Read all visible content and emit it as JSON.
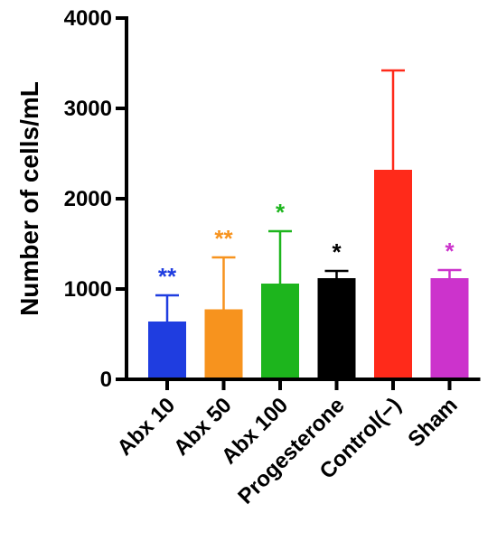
{
  "chart_data": {
    "type": "bar",
    "categories": [
      "Abx 10",
      "Abx 50",
      "Abx 100",
      "Progesterone",
      "Control(−)",
      "Sham"
    ],
    "values": [
      640,
      775,
      1060,
      1120,
      2320,
      1120
    ],
    "error_upper": [
      930,
      1350,
      1640,
      1200,
      3420,
      1210
    ],
    "significance": [
      "**",
      "**",
      "*",
      "*",
      "",
      "*"
    ],
    "colors": [
      "#1f3de0",
      "#f7931e",
      "#1db51d",
      "#000000",
      "#ff2a1a",
      "#cc33cc"
    ],
    "ylabel": "Number of cells/mL",
    "xlabel": "",
    "title": "",
    "ylim": [
      0,
      4000
    ],
    "yticks": [
      0,
      1000,
      2000,
      3000,
      4000
    ],
    "grid": false
  }
}
